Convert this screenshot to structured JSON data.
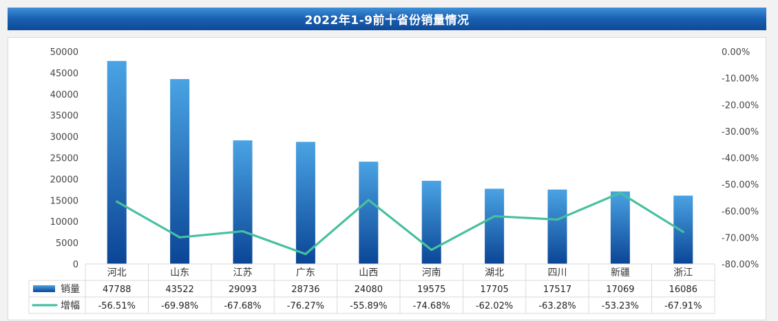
{
  "title": "2022年1-9前十省份销量情况",
  "colors": {
    "bar_top": "#4aa3e3",
    "bar_bottom": "#0b4596",
    "line": "#46c0a0",
    "grid": "#d9d9d9"
  },
  "chart_data": {
    "type": "bar+line",
    "title": "2022年1-9前十省份销量情况",
    "categories": [
      "河北",
      "山东",
      "江苏",
      "广东",
      "山西",
      "河南",
      "湖北",
      "四川",
      "新疆",
      "浙江"
    ],
    "series": [
      {
        "name": "销量",
        "type": "bar",
        "axis": "left",
        "values": [
          47788,
          43522,
          29093,
          28736,
          24080,
          19575,
          17705,
          17517,
          17069,
          16086
        ],
        "labels": [
          "47788",
          "43522",
          "29093",
          "28736",
          "24080",
          "19575",
          "17705",
          "17517",
          "17069",
          "16086"
        ]
      },
      {
        "name": "增幅",
        "type": "line",
        "axis": "right",
        "values": [
          -56.51,
          -69.98,
          -67.68,
          -76.27,
          -55.89,
          -74.68,
          -62.02,
          -63.28,
          -53.23,
          -67.91
        ],
        "labels": [
          "-56.51%",
          "-69.98%",
          "-67.68%",
          "-76.27%",
          "-55.89%",
          "-74.68%",
          "-62.02%",
          "-63.28%",
          "-53.23%",
          "-67.91%"
        ]
      }
    ],
    "y_left": {
      "range": [
        0,
        50000
      ],
      "tick_labels": [
        "0",
        "5000",
        "10000",
        "15000",
        "20000",
        "25000",
        "30000",
        "35000",
        "40000",
        "45000",
        "50000"
      ]
    },
    "y_right": {
      "range": [
        -80,
        0
      ],
      "tick_labels": [
        "-80.00%",
        "-70.00%",
        "-60.00%",
        "-50.00%",
        "-40.00%",
        "-30.00%",
        "-20.00%",
        "-10.00%",
        "0.00%"
      ]
    },
    "grid": false,
    "legend_placement": "data-table-left"
  }
}
